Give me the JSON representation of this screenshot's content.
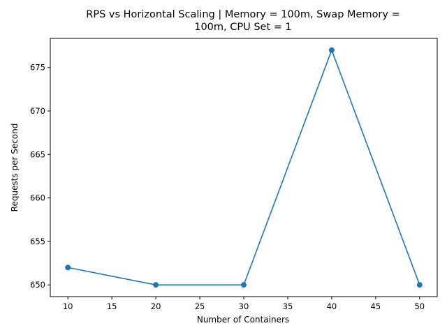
{
  "chart_data": {
    "type": "line",
    "title_lines": [
      "RPS vs Horizontal Scaling | Memory = 100m, Swap Memory =",
      "100m, CPU Set = 1"
    ],
    "xlabel": "Number of Containers",
    "ylabel": "Requests per Second",
    "x": [
      10,
      20,
      30,
      40,
      50
    ],
    "series": [
      {
        "values": [
          652,
          650,
          650,
          677,
          650
        ]
      }
    ],
    "xlim": [
      8,
      52
    ],
    "ylim": [
      648.65,
      678.35
    ],
    "xticks": [
      10,
      15,
      20,
      25,
      30,
      35,
      40,
      45,
      50
    ],
    "yticks": [
      650,
      655,
      660,
      665,
      670,
      675
    ],
    "grid": false,
    "line_color": "#1f77b4",
    "marker": "circle"
  }
}
